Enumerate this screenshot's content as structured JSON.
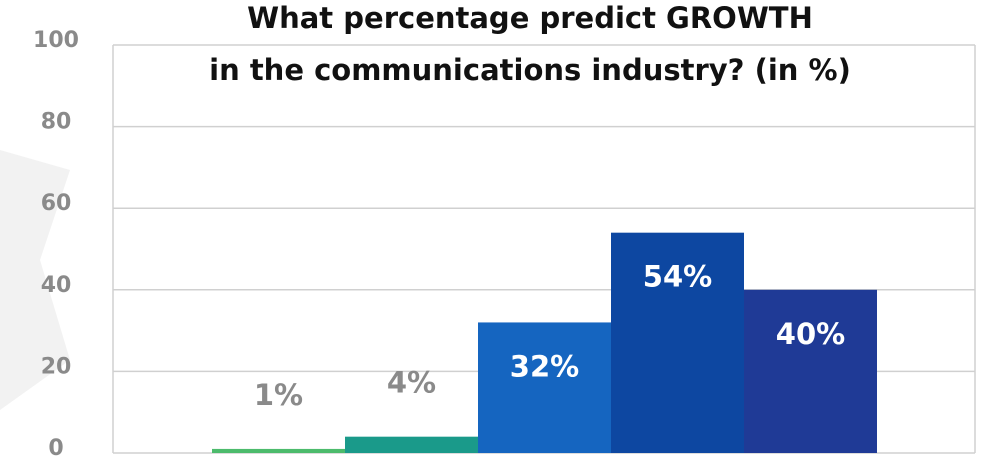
{
  "chart_data": {
    "type": "bar",
    "title": [
      "What percentage predict GROWTH",
      "in the communications industry? (in %)"
    ],
    "categories": [
      null,
      null,
      null,
      null,
      null
    ],
    "values": [
      1,
      4,
      32,
      54,
      40
    ],
    "value_labels": [
      "1%",
      "4%",
      "32%",
      "54%",
      "40%"
    ],
    "colors": [
      "#4cbb6c",
      "#1a9a8a",
      "#1565c0",
      "#0d47a1",
      "#1f3a96"
    ],
    "ylim": [
      0,
      100
    ],
    "yticks": [
      0,
      20,
      40,
      60,
      80,
      100
    ],
    "grid": true
  }
}
